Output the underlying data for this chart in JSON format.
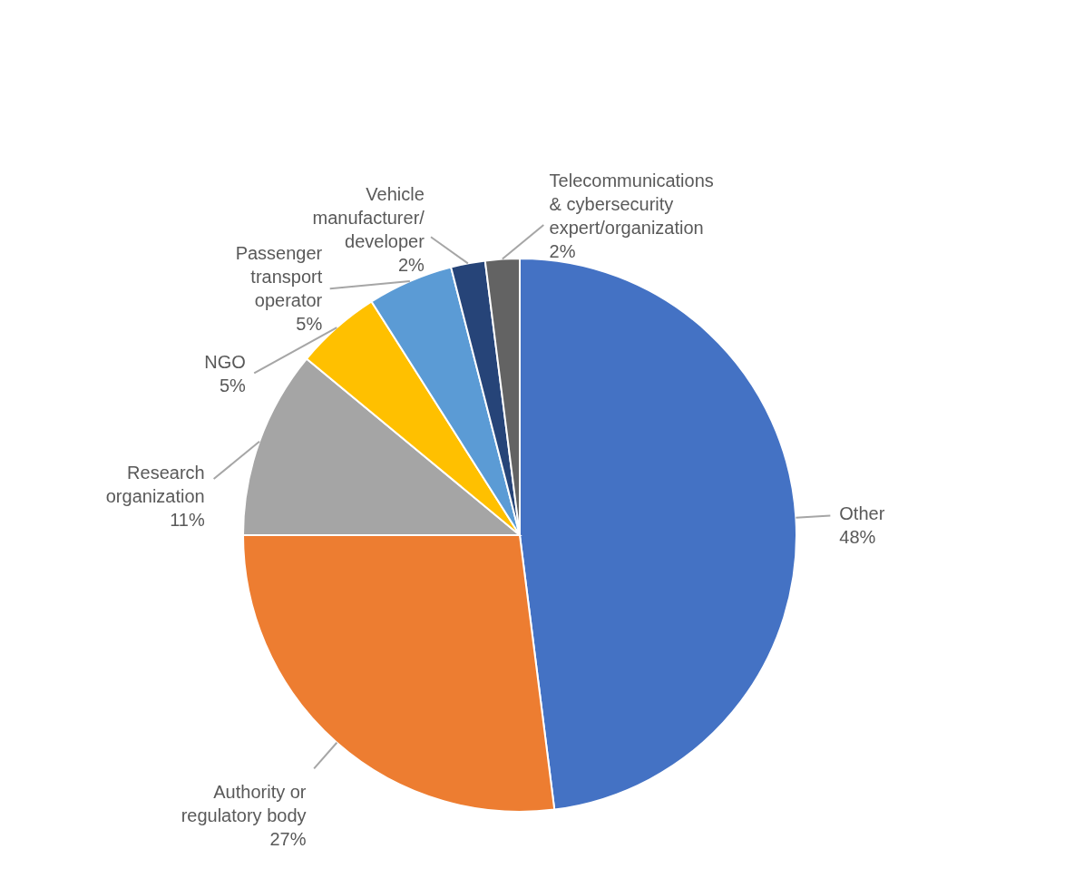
{
  "chart_data": {
    "type": "pie",
    "categories": [
      "Other",
      "Authority or regulatory body",
      "Research organization",
      "NGO",
      "Passenger transport operator",
      "Vehicle manufacturer/ developer",
      "Telecommunications & cybersecurity expert/organization"
    ],
    "values": [
      48,
      27,
      11,
      5,
      5,
      2,
      2
    ],
    "colors": [
      "#4472c4",
      "#ed7d31",
      "#a5a5a5",
      "#ffc000",
      "#5b9bd5",
      "#264478",
      "#636363"
    ],
    "value_labels": [
      "48%",
      "27%",
      "11%",
      "5%",
      "5%",
      "2%",
      "2%"
    ]
  }
}
